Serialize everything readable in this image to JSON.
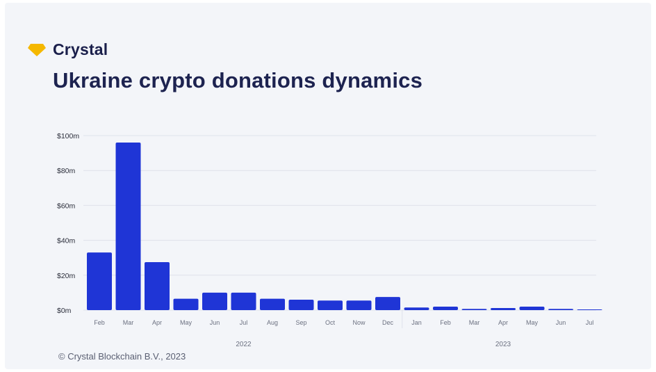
{
  "brand": {
    "name": "Crystal",
    "icon": "diamond-icon",
    "icon_color": "#f5b800"
  },
  "title": "Ukraine crypto donations dynamics",
  "footer": "© Crystal Blockchain B.V., 2023",
  "colors": {
    "bar": "#1f35d6",
    "grid": "#dfe2ea",
    "axis_text": "#2a2d3a",
    "tick_text": "#6b7080"
  },
  "chart_data": {
    "type": "bar",
    "categories": [
      "Feb",
      "Mar",
      "Apr",
      "May",
      "Jun",
      "Jul",
      "Aug",
      "Sep",
      "Oct",
      "Now",
      "Dec",
      "Jan",
      "Feb",
      "Mar",
      "Apr",
      "May",
      "Jun",
      "Jul"
    ],
    "groups": [
      {
        "label": "2022",
        "count": 11
      },
      {
        "label": "2023",
        "count": 7
      }
    ],
    "values": [
      33,
      96,
      27.5,
      6.5,
      10,
      10,
      6.5,
      6,
      5.5,
      5.5,
      7.5,
      1.5,
      2,
      0.7,
      1.2,
      2,
      0.7,
      0.4
    ],
    "ylim": [
      0,
      100
    ],
    "yticks": [
      0,
      20,
      40,
      60,
      80,
      100
    ],
    "ytick_labels": [
      "$0m",
      "$20m",
      "$40m",
      "$60m",
      "$80m",
      "$100m"
    ],
    "grid": true,
    "title": "Ukraine crypto donations dynamics",
    "xlabel": "",
    "ylabel": ""
  }
}
